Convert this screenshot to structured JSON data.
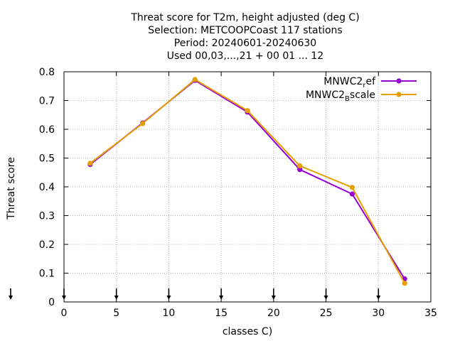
{
  "chart_data": {
    "type": "line",
    "title_lines": [
      "Threat score  for T2m, height adjusted (deg C)",
      "Selection: METCOOPCoast    117 stations",
      "Period: 20240601-20240630",
      "Used 00,03,...,21 + 00 01 ... 12"
    ],
    "xlabel": "classes C)",
    "ylabel": "Threat score",
    "xlim": [
      0,
      35
    ],
    "ylim": [
      0,
      0.8
    ],
    "xticks": [
      0,
      5,
      10,
      15,
      20,
      25,
      30,
      35
    ],
    "xtick_labels": [
      "0",
      "5",
      "10",
      "15",
      "20",
      "25",
      "30",
      "35"
    ],
    "yticks": [
      0,
      0.1,
      0.2,
      0.3,
      0.4,
      0.5,
      0.6,
      0.7,
      0.8
    ],
    "ytick_labels": [
      "0",
      "0.1",
      "0.2",
      "0.3",
      "0.4",
      "0.5",
      "0.6",
      "0.7",
      "0.8"
    ],
    "grid": true,
    "legend_position": "top-right",
    "x": [
      2.5,
      7.5,
      12.5,
      17.5,
      22.5,
      27.5,
      32.5
    ],
    "series": [
      {
        "name_main": "MNWC2",
        "name_sub": "r",
        "name_rest": "ef",
        "color": "#9400d3",
        "values": [
          0.478,
          0.622,
          0.77,
          0.66,
          0.46,
          0.375,
          0.08
        ]
      },
      {
        "name_main": "MNWC2",
        "name_sub": "B",
        "name_rest": "scale",
        "color": "#e69f00",
        "values": [
          0.482,
          0.62,
          0.773,
          0.665,
          0.473,
          0.398,
          0.065
        ]
      }
    ],
    "arrow_markers_x": [
      0,
      5,
      10,
      15,
      20,
      25,
      30
    ]
  }
}
